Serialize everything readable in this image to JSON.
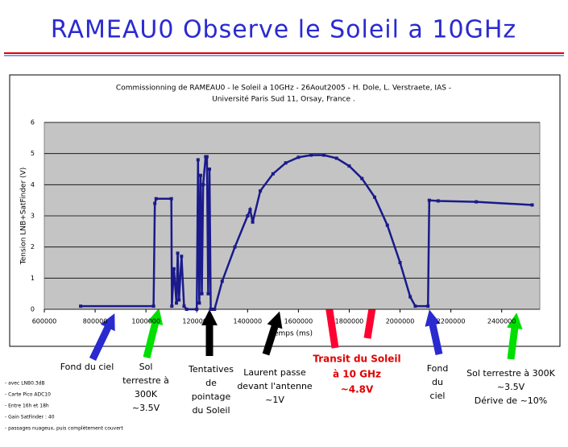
{
  "slide": {
    "title": "RAMEAU0 Observe le Soleil a 10GHz"
  },
  "chart_data": {
    "type": "line",
    "title": "Commissionning de RAMEAU0 - le Soleil a 10GHz - 26Aout2005 - H. Dole, L. Verstraete, IAS -",
    "subtitle": "Université Paris Sud 11, Orsay, France .",
    "x_label": "Temps (ms)",
    "y_label": "Tension LNB+SatFinder (V)",
    "color": "#1a1a8c",
    "x": [
      743000,
      1030000,
      1035000,
      1040000,
      1100000,
      1102000,
      1110000,
      1120000,
      1125000,
      1130000,
      1140000,
      1150000,
      1160000,
      1200000,
      1205000,
      1210000,
      1215000,
      1220000,
      1225000,
      1235000,
      1240000,
      1245000,
      1250000,
      1255000,
      1265000,
      1270000,
      1300000,
      1350000,
      1400000,
      1410000,
      1420000,
      1450000,
      1500000,
      1550000,
      1600000,
      1650000,
      1700000,
      1750000,
      1800000,
      1850000,
      1900000,
      1950000,
      2000000,
      2040000,
      2060000,
      2110000,
      2115000,
      2150000,
      2300000,
      2520000
    ],
    "values": [
      0.1,
      0.1,
      3.4,
      3.55,
      3.55,
      0.1,
      1.3,
      0.2,
      1.8,
      0.3,
      1.7,
      0.1,
      0,
      0,
      4.8,
      0.2,
      4.3,
      0.5,
      4.0,
      4.9,
      4.9,
      0.5,
      4.5,
      0,
      0,
      0,
      0.9,
      2.0,
      3.0,
      3.2,
      2.8,
      3.8,
      4.35,
      4.7,
      4.88,
      4.95,
      4.95,
      4.85,
      4.6,
      4.2,
      3.6,
      2.7,
      1.5,
      0.4,
      0.1,
      0.1,
      3.5,
      3.48,
      3.45,
      3.35
    ],
    "xlim": [
      600000,
      2550000
    ],
    "xticks": [
      600000,
      800000,
      1000000,
      1200000,
      1400000,
      1600000,
      1800000,
      2000000,
      2200000,
      2400000
    ],
    "ylim": [
      0,
      6
    ],
    "yticks": [
      0,
      1,
      2,
      3,
      4,
      5,
      6
    ],
    "grid": true
  },
  "annotations": [
    {
      "lines": [
        "Fond du ciel"
      ],
      "color": "#000000"
    },
    {
      "lines": [
        "Sol",
        "terrestre à",
        "300K",
        "~3.5V"
      ],
      "color": "#000000"
    },
    {
      "lines": [
        "Tentatives",
        "de",
        "pointage",
        "du Soleil"
      ],
      "color": "#000000"
    },
    {
      "lines": [
        "Laurent passe",
        "devant l'antenne",
        "~1V"
      ],
      "color": "#000000"
    },
    {
      "lines": [
        "Transit du Soleil",
        "à 10 GHz",
        "~4.8V"
      ],
      "color": "#e00000"
    },
    {
      "lines": [
        "Fond",
        "du",
        "ciel"
      ],
      "color": "#000000"
    },
    {
      "lines": [
        "Sol terrestre à 300K",
        "~3.5V",
        "Dérive de ~10%"
      ],
      "color": "#000000"
    }
  ],
  "notes": [
    "- avec LNB0.3dB",
    "- Carte Pico ADC10",
    "- Entre 16h et 18h",
    "- Gain SatFinder : 40",
    "- passages nuageux, puis complètement couvert"
  ]
}
